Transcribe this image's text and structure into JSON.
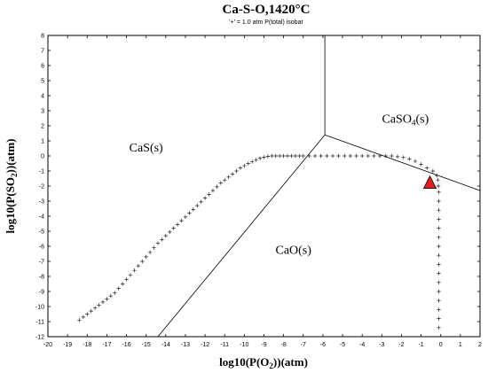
{
  "chart_data": {
    "type": "scatter",
    "title": "Ca-S-O,1420°C",
    "subtitle": "'+' = 1.0 atm P(total) isobar",
    "xlabel": {
      "prefix": "log10(P(O",
      "subscript": "2",
      "suffix": "))(atm)"
    },
    "ylabel": {
      "prefix": "log10(P(SO",
      "subscript": "2",
      "suffix": "))(atm)"
    },
    "xlim": [
      -20,
      2
    ],
    "ylim": [
      -12,
      8
    ],
    "xticks": [
      "-20",
      "-19",
      "-18",
      "-17",
      "-16",
      "-15",
      "-14",
      "-13",
      "-12",
      "-11",
      "-10",
      "-9",
      "-8",
      "-7",
      "-6",
      "-5",
      "-4",
      "-3",
      "-2",
      "-1",
      "0",
      "1",
      "2"
    ],
    "yticks": [
      "8",
      "7",
      "6",
      "5",
      "4",
      "3",
      "2",
      "1",
      "0",
      "-1",
      "-2",
      "-3",
      "-4",
      "-5",
      "-6",
      "-7",
      "-8",
      "-9",
      "-10",
      "-11",
      "-12"
    ],
    "grid": false,
    "regions": [
      {
        "prefix": "CaS(s)",
        "subscript": "",
        "suffix": "",
        "x": -15,
        "y": 0.3
      },
      {
        "prefix": "CaSO",
        "subscript": "4",
        "suffix": "(s)",
        "x": -1.8,
        "y": 2.2
      },
      {
        "prefix": "CaO(s)",
        "subscript": "",
        "suffix": "",
        "x": -7.5,
        "y": -6.5
      }
    ],
    "boundaries": [
      {
        "name": "CaS/CaO",
        "x": [
          -14.4,
          -5.9
        ],
        "y": [
          -12,
          1.4
        ]
      },
      {
        "name": "CaS/CaSO4",
        "x": [
          -5.9,
          -5.9
        ],
        "y": [
          1.4,
          8
        ]
      },
      {
        "name": "CaO/CaSO4",
        "x": [
          -5.9,
          2
        ],
        "y": [
          1.4,
          -2.3
        ]
      }
    ],
    "series": [
      {
        "marker": "+",
        "x": [
          -18.4,
          -18.2,
          -18.0,
          -17.8,
          -17.6,
          -17.4,
          -17.2,
          -17.0,
          -16.8,
          -16.6,
          -16.4,
          -16.2,
          -16.0,
          -15.8,
          -15.6,
          -15.4,
          -15.2,
          -15.0,
          -14.8,
          -14.6,
          -14.4,
          -14.2,
          -14.0,
          -13.8,
          -13.6,
          -13.4,
          -13.2,
          -13.0,
          -12.8,
          -12.6,
          -12.4,
          -12.2,
          -12.0,
          -11.8,
          -11.6,
          -11.4,
          -11.2,
          -11.0,
          -10.8,
          -10.6,
          -10.4,
          -10.2,
          -10.0,
          -9.8,
          -9.6,
          -9.4,
          -9.2,
          -9.0,
          -8.8,
          -8.6,
          -8.4,
          -8.2,
          -8.0,
          -7.8,
          -7.6,
          -7.4,
          -7.2,
          -7.0,
          -6.7,
          -6.4,
          -6.1,
          -5.8,
          -5.5,
          -5.2,
          -4.9,
          -4.6,
          -4.3,
          -4.0,
          -3.7,
          -3.4,
          -3.1,
          -2.8,
          -2.5,
          -2.2,
          -1.9,
          -1.6,
          -1.3,
          -1.0,
          -0.7,
          -0.4,
          -0.2,
          -0.15,
          -0.12,
          -0.1,
          -0.1,
          -0.1,
          -0.1,
          -0.1,
          -0.1,
          -0.1,
          -0.1,
          -0.1,
          -0.1,
          -0.1,
          -0.1,
          -0.1,
          -0.1,
          -0.1,
          -0.1
        ],
        "y": [
          -10.9,
          -10.7,
          -10.5,
          -10.3,
          -10.1,
          -9.9,
          -9.7,
          -9.5,
          -9.3,
          -9.1,
          -8.8,
          -8.5,
          -8.2,
          -7.9,
          -7.6,
          -7.3,
          -7.0,
          -6.7,
          -6.4,
          -6.1,
          -5.8,
          -5.55,
          -5.3,
          -5.05,
          -4.8,
          -4.55,
          -4.3,
          -4.05,
          -3.8,
          -3.55,
          -3.3,
          -3.05,
          -2.8,
          -2.55,
          -2.3,
          -2.05,
          -1.8,
          -1.6,
          -1.4,
          -1.2,
          -1.0,
          -0.8,
          -0.65,
          -0.5,
          -0.38,
          -0.26,
          -0.16,
          -0.08,
          -0.03,
          0.0,
          0.0,
          0.0,
          0.0,
          0.0,
          0.0,
          0.0,
          0.0,
          0.0,
          0.0,
          0.0,
          0.0,
          0.0,
          0.0,
          0.0,
          0.0,
          0.0,
          0.0,
          0.0,
          0.0,
          0.0,
          0.0,
          0.0,
          0.0,
          -0.05,
          -0.1,
          -0.2,
          -0.35,
          -0.55,
          -0.8,
          -1.0,
          -1.3,
          -1.6,
          -2.0,
          -2.4,
          -3.0,
          -3.6,
          -4.2,
          -4.8,
          -5.4,
          -6.0,
          -6.6,
          -7.2,
          -7.8,
          -8.4,
          -9.0,
          -9.6,
          -10.2,
          -10.8,
          -11.4
        ]
      }
    ],
    "marker_point": {
      "shape": "triangle",
      "x": -0.55,
      "y": -1.8,
      "color": "#e41e1e"
    },
    "colors": {
      "line": "#000000",
      "marker": "#222222",
      "triangle_fill": "#e41e1e",
      "triangle_stroke": "#000000"
    }
  }
}
